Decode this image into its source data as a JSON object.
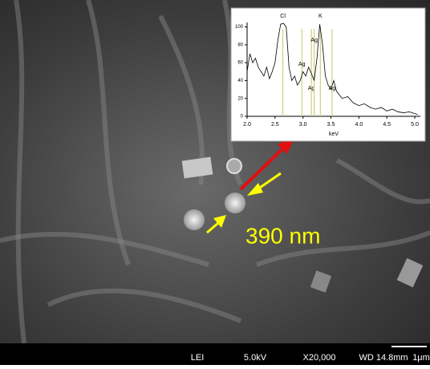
{
  "annotation": "390 nm",
  "info_bar": [
    "LEI",
    "5.0kV",
    "X20,000",
    "WD 14.8mm",
    "1μm"
  ],
  "chart_data": {
    "type": "line",
    "xlabel": "keV",
    "x": [
      2.0,
      2.05,
      2.1,
      2.15,
      2.2,
      2.25,
      2.3,
      2.35,
      2.4,
      2.45,
      2.5,
      2.55,
      2.6,
      2.65,
      2.7,
      2.75,
      2.8,
      2.85,
      2.9,
      2.95,
      3.0,
      3.05,
      3.1,
      3.15,
      3.2,
      3.25,
      3.3,
      3.35,
      3.4,
      3.45,
      3.5,
      3.55,
      3.6,
      3.7,
      3.8,
      3.9,
      4.0,
      4.1,
      4.2,
      4.3,
      4.4,
      4.5,
      4.6,
      4.7,
      4.8,
      4.9,
      5.0,
      5.05
    ],
    "values": [
      50,
      70,
      60,
      65,
      55,
      50,
      45,
      55,
      42,
      50,
      60,
      85,
      103,
      104,
      100,
      55,
      40,
      45,
      35,
      40,
      50,
      45,
      55,
      48,
      40,
      65,
      103,
      80,
      45,
      35,
      30,
      40,
      28,
      20,
      22,
      15,
      12,
      14,
      10,
      8,
      10,
      6,
      8,
      5,
      4,
      5,
      3,
      2
    ],
    "color": "#000000",
    "peaks": [
      {
        "label": "Cl",
        "x": 2.64
      },
      {
        "label": "Ag",
        "x": 2.98
      },
      {
        "label": "Ag",
        "x": 3.15
      },
      {
        "label": "Ag",
        "x": 3.2
      },
      {
        "label": "K",
        "x": 3.31
      },
      {
        "label": "Ag",
        "x": 3.52
      }
    ],
    "peak_color": "#c8c864",
    "xlim": [
      2.0,
      5.1
    ],
    "ylim": [
      0,
      105
    ],
    "xticks": [
      {
        "value": 2.0,
        "label": "2.0"
      },
      {
        "value": 2.5,
        "label": "2.5"
      },
      {
        "value": 3.0,
        "label": "3.0"
      },
      {
        "value": 3.5,
        "label": "3.5"
      },
      {
        "value": 4.0,
        "label": "4.0"
      },
      {
        "value": 4.5,
        "label": "4.5"
      },
      {
        "value": 5.0,
        "label": "5.0"
      }
    ],
    "yticks": [
      0,
      20,
      40,
      60,
      80,
      100
    ]
  }
}
